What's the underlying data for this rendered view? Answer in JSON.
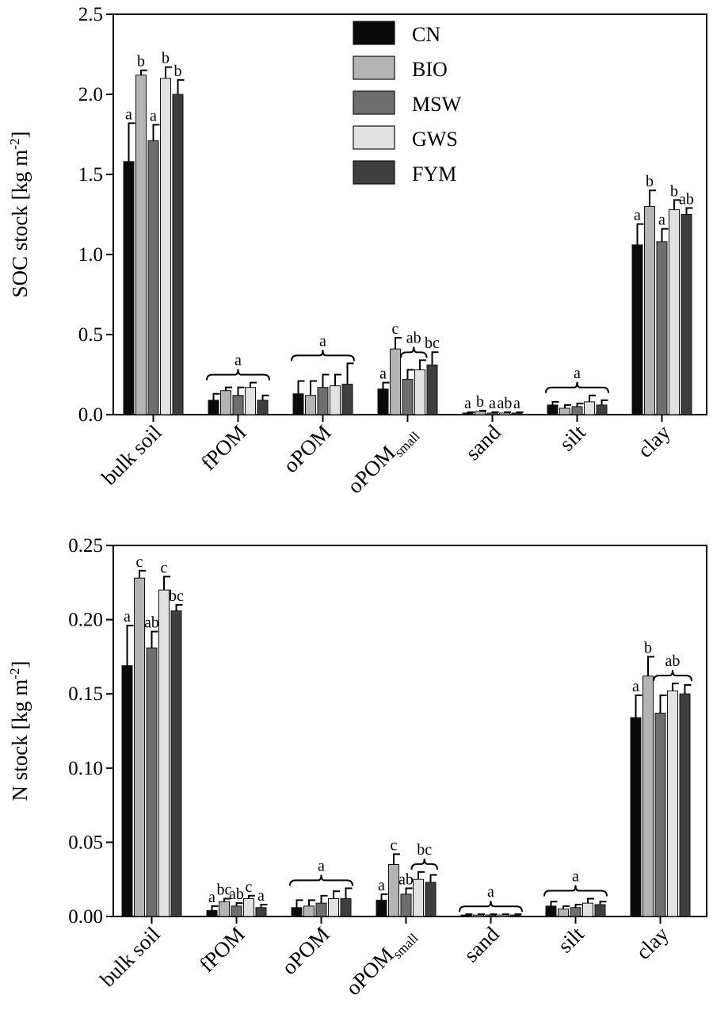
{
  "chart_data": [
    {
      "type": "bar",
      "ylabel": "SOC stock [kg m",
      "ylabel_sup": "-2",
      "ylabel_end": "]",
      "ylim": [
        0,
        2.5
      ],
      "yticks": [
        "0.0",
        "0.5",
        "1.0",
        "1.5",
        "2.0",
        "2.5"
      ],
      "categories": [
        "bulk soil",
        "fPOM",
        "oPOM",
        "oPOM",
        "sand",
        "silt",
        "clay"
      ],
      "category_subscripts": [
        "",
        "",
        "",
        "small",
        "",
        "",
        ""
      ],
      "legend": {
        "position": "top-center",
        "entries": [
          "CN",
          "BIO",
          "MSW",
          "GWS",
          "FYM"
        ]
      },
      "series": [
        {
          "name": "CN",
          "color": "#0a0a0a",
          "values": [
            1.58,
            0.09,
            0.13,
            0.16,
            0.01,
            0.06,
            1.06
          ],
          "errors": [
            0.24,
            0.04,
            0.08,
            0.04,
            0.005,
            0.02,
            0.13
          ]
        },
        {
          "name": "BIO",
          "color": "#b4b4b4",
          "values": [
            2.12,
            0.15,
            0.12,
            0.41,
            0.02,
            0.04,
            1.3
          ],
          "errors": [
            0.03,
            0.02,
            0.09,
            0.07,
            0.005,
            0.02,
            0.1
          ]
        },
        {
          "name": "MSW",
          "color": "#6e6e6e",
          "values": [
            1.71,
            0.12,
            0.17,
            0.22,
            0.01,
            0.05,
            1.08
          ],
          "errors": [
            0.1,
            0.05,
            0.08,
            0.06,
            0.005,
            0.02,
            0.08
          ]
        },
        {
          "name": "GWS",
          "color": "#e2e2e2",
          "values": [
            2.1,
            0.17,
            0.18,
            0.28,
            0.01,
            0.08,
            1.28
          ],
          "errors": [
            0.07,
            0.03,
            0.07,
            0.06,
            0.005,
            0.04,
            0.06
          ]
        },
        {
          "name": "FYM",
          "color": "#3e3e3e",
          "values": [
            2.0,
            0.09,
            0.19,
            0.31,
            0.01,
            0.06,
            1.25
          ],
          "errors": [
            0.09,
            0.03,
            0.13,
            0.08,
            0.005,
            0.03,
            0.04
          ]
        }
      ],
      "annotations": [
        {
          "category": 0,
          "bars": [
            0
          ],
          "text": "a"
        },
        {
          "category": 0,
          "bars": [
            1
          ],
          "text": "b"
        },
        {
          "category": 0,
          "bars": [
            2
          ],
          "text": "a"
        },
        {
          "category": 0,
          "bars": [
            3
          ],
          "text": "b"
        },
        {
          "category": 0,
          "bars": [
            4
          ],
          "text": "b"
        },
        {
          "category": 1,
          "bars": [
            0,
            4
          ],
          "text": "a"
        },
        {
          "category": 2,
          "bars": [
            0,
            4
          ],
          "text": "a"
        },
        {
          "category": 3,
          "bars": [
            0
          ],
          "text": "a"
        },
        {
          "category": 3,
          "bars": [
            1
          ],
          "text": "c"
        },
        {
          "category": 3,
          "bars": [
            2,
            3
          ],
          "text": "ab"
        },
        {
          "category": 3,
          "bars": [
            4
          ],
          "text": "bc"
        },
        {
          "category": 4,
          "bars": [
            0
          ],
          "text": "a"
        },
        {
          "category": 4,
          "bars": [
            1
          ],
          "text": "b"
        },
        {
          "category": 4,
          "bars": [
            2
          ],
          "text": "a"
        },
        {
          "category": 4,
          "bars": [
            3
          ],
          "text": "ab"
        },
        {
          "category": 4,
          "bars": [
            4
          ],
          "text": "a"
        },
        {
          "category": 5,
          "bars": [
            0,
            4
          ],
          "text": "a"
        },
        {
          "category": 6,
          "bars": [
            0
          ],
          "text": "a"
        },
        {
          "category": 6,
          "bars": [
            1
          ],
          "text": "b"
        },
        {
          "category": 6,
          "bars": [
            2
          ],
          "text": "a"
        },
        {
          "category": 6,
          "bars": [
            3
          ],
          "text": "b"
        },
        {
          "category": 6,
          "bars": [
            4
          ],
          "text": "ab"
        }
      ]
    },
    {
      "type": "bar",
      "ylabel": "N stock [kg m",
      "ylabel_sup": "-2",
      "ylabel_end": "]",
      "ylim": [
        0,
        0.25
      ],
      "yticks": [
        "0.00",
        "0.05",
        "0.10",
        "0.15",
        "0.20",
        "0.25"
      ],
      "categories": [
        "bulk soil",
        "fPOM",
        "oPOM",
        "oPOM",
        "sand",
        "silt",
        "clay"
      ],
      "category_subscripts": [
        "",
        "",
        "",
        "small",
        "",
        "",
        ""
      ],
      "series": [
        {
          "name": "CN",
          "color": "#0a0a0a",
          "values": [
            0.169,
            0.004,
            0.006,
            0.011,
            0.001,
            0.007,
            0.134
          ],
          "errors": [
            0.027,
            0.003,
            0.005,
            0.004,
            0.0005,
            0.003,
            0.015
          ]
        },
        {
          "name": "BIO",
          "color": "#b4b4b4",
          "values": [
            0.228,
            0.01,
            0.007,
            0.035,
            0.001,
            0.005,
            0.162
          ],
          "errors": [
            0.005,
            0.002,
            0.004,
            0.007,
            0.0005,
            0.002,
            0.013
          ]
        },
        {
          "name": "MSW",
          "color": "#6e6e6e",
          "values": [
            0.181,
            0.007,
            0.009,
            0.015,
            0.001,
            0.006,
            0.137
          ],
          "errors": [
            0.011,
            0.002,
            0.005,
            0.004,
            0.0005,
            0.002,
            0.012
          ]
        },
        {
          "name": "GWS",
          "color": "#e2e2e2",
          "values": [
            0.22,
            0.012,
            0.012,
            0.025,
            0.001,
            0.009,
            0.152
          ],
          "errors": [
            0.009,
            0.002,
            0.005,
            0.005,
            0.0005,
            0.003,
            0.005
          ]
        },
        {
          "name": "FYM",
          "color": "#3e3e3e",
          "values": [
            0.206,
            0.006,
            0.012,
            0.023,
            0.001,
            0.008,
            0.15
          ],
          "errors": [
            0.004,
            0.002,
            0.007,
            0.005,
            0.0005,
            0.002,
            0.006
          ]
        }
      ],
      "annotations": [
        {
          "category": 0,
          "bars": [
            0
          ],
          "text": "a"
        },
        {
          "category": 0,
          "bars": [
            1
          ],
          "text": "c"
        },
        {
          "category": 0,
          "bars": [
            2
          ],
          "text": "ab"
        },
        {
          "category": 0,
          "bars": [
            3
          ],
          "text": "c"
        },
        {
          "category": 0,
          "bars": [
            4
          ],
          "text": "bc"
        },
        {
          "category": 1,
          "bars": [
            0
          ],
          "text": "a"
        },
        {
          "category": 1,
          "bars": [
            1
          ],
          "text": "bc"
        },
        {
          "category": 1,
          "bars": [
            2
          ],
          "text": "ab"
        },
        {
          "category": 1,
          "bars": [
            3
          ],
          "text": "c"
        },
        {
          "category": 1,
          "bars": [
            4
          ],
          "text": "a"
        },
        {
          "category": 2,
          "bars": [
            0,
            4
          ],
          "text": "a"
        },
        {
          "category": 3,
          "bars": [
            0
          ],
          "text": "a"
        },
        {
          "category": 3,
          "bars": [
            1
          ],
          "text": "c"
        },
        {
          "category": 3,
          "bars": [
            2
          ],
          "text": "ab"
        },
        {
          "category": 3,
          "bars": [
            3,
            4
          ],
          "text": "bc"
        },
        {
          "category": 4,
          "bars": [
            0,
            4
          ],
          "text": "a"
        },
        {
          "category": 5,
          "bars": [
            0,
            4
          ],
          "text": "a"
        },
        {
          "category": 6,
          "bars": [
            0
          ],
          "text": "a"
        },
        {
          "category": 6,
          "bars": [
            1
          ],
          "text": "b"
        },
        {
          "category": 6,
          "bars": [
            2,
            4
          ],
          "text": "ab"
        }
      ]
    }
  ]
}
